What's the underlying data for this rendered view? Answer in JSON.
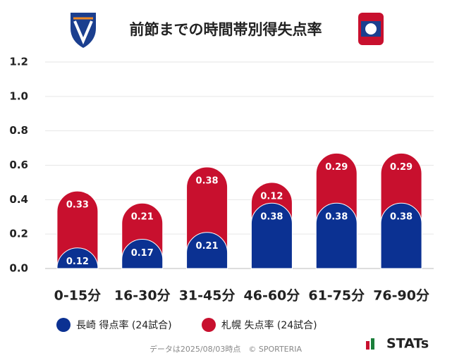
{
  "chart_data": {
    "type": "bar",
    "stacked": true,
    "title": "前節までの時間帯別得失点率",
    "categories": [
      "0-15分",
      "16-30分",
      "31-45分",
      "46-60分",
      "61-75分",
      "76-90分"
    ],
    "series": [
      {
        "name": "長崎 得点率 (24試合)",
        "color": "#0b3192",
        "values": [
          0.12,
          0.17,
          0.21,
          0.38,
          0.38,
          0.38
        ]
      },
      {
        "name": "札幌 失点率 (24試合)",
        "color": "#c8102e",
        "values": [
          0.33,
          0.21,
          0.38,
          0.12,
          0.29,
          0.29
        ]
      }
    ],
    "ylim": [
      0,
      1.2
    ],
    "yticks": [
      {
        "value": 0,
        "label": "0.0"
      },
      0.2,
      0.4,
      0.6,
      0.8,
      {
        "value": 1,
        "label": "1.0"
      },
      1.2
    ],
    "grid": true
  },
  "footer": "データは2025/08/03時点　© SPORTERIA",
  "brand": "STATs"
}
